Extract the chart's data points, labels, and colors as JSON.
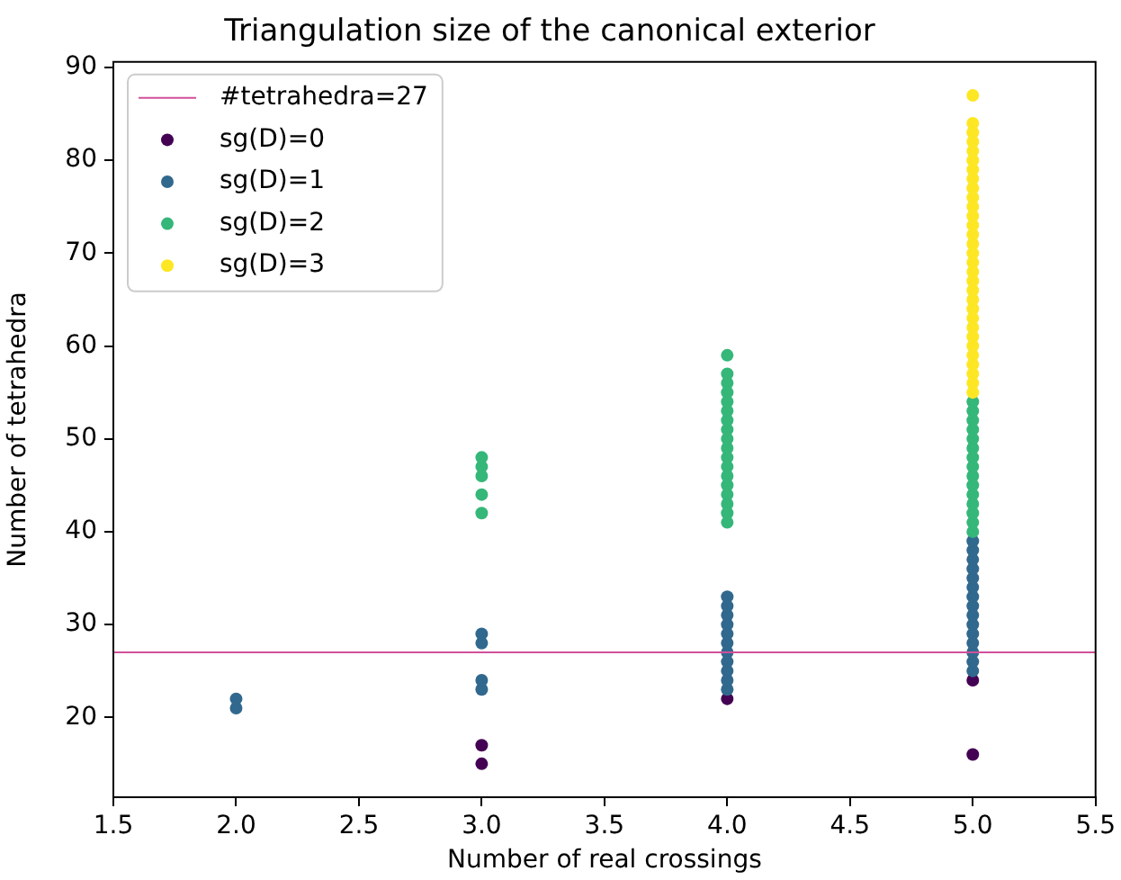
{
  "chart_data": {
    "type": "scatter",
    "title": "Triangulation size of the canonical exterior",
    "xlabel": "Number of real crossings",
    "ylabel": "Number of tetrahedra",
    "xlim": [
      1.5,
      5.5
    ],
    "xticks": [
      1.5,
      {
        "value": 2,
        "label": "2.0"
      },
      2.5,
      {
        "value": 3,
        "label": "3.0"
      },
      3.5,
      {
        "value": 4,
        "label": "4.0"
      },
      4.5,
      {
        "value": 5,
        "label": "5.0"
      },
      5.5
    ],
    "ylim": [
      11.4,
      90.6
    ],
    "yticks": [
      20,
      30,
      40,
      50,
      60,
      70,
      80,
      90
    ],
    "grid": false,
    "legend": "top left",
    "marker": "circle",
    "ref_lines": [
      {
        "axis": "y",
        "value": 27,
        "label": "#tetrahedra=27",
        "color": "#d0509a"
      }
    ],
    "series": [
      {
        "name": "sg(D)=0",
        "color": "#440154",
        "x": [
          3,
          3,
          4,
          5,
          5
        ],
        "values": [
          15,
          17,
          22,
          16,
          24
        ]
      },
      {
        "name": "sg(D)=1",
        "color": "#31688e",
        "x": [
          2,
          2,
          3,
          3,
          3,
          3,
          4,
          4,
          4,
          4,
          4,
          4,
          4,
          4,
          4,
          4,
          4,
          5,
          5,
          5,
          5,
          5,
          5,
          5,
          5,
          5,
          5,
          5,
          5,
          5,
          5,
          5
        ],
        "values": [
          21,
          22,
          23,
          24,
          28,
          29,
          23,
          24,
          25,
          26,
          27,
          28,
          29,
          30,
          31,
          32,
          33,
          25,
          26,
          27,
          28,
          29,
          30,
          31,
          32,
          33,
          34,
          35,
          36,
          37,
          38,
          39
        ]
      },
      {
        "name": "sg(D)=2",
        "color": "#35b779",
        "x": [
          3,
          3,
          3,
          3,
          3,
          4,
          4,
          4,
          4,
          4,
          4,
          4,
          4,
          4,
          4,
          4,
          4,
          4,
          4,
          4,
          4,
          4,
          4,
          5,
          5,
          5,
          5,
          5,
          5,
          5,
          5,
          5,
          5,
          5,
          5,
          5,
          5,
          5
        ],
        "values": [
          42,
          44,
          46,
          47,
          48,
          41,
          42,
          43,
          44,
          45,
          46,
          47,
          48,
          49,
          50,
          51,
          52,
          53,
          54,
          55,
          56,
          57,
          59,
          40,
          41,
          42,
          43,
          44,
          45,
          46,
          47,
          48,
          49,
          50,
          51,
          52,
          53,
          54
        ]
      },
      {
        "name": "sg(D)=3",
        "color": "#fde725",
        "x": [
          5,
          5,
          5,
          5,
          5,
          5,
          5,
          5,
          5,
          5,
          5,
          5,
          5,
          5,
          5,
          5,
          5,
          5,
          5,
          5,
          5,
          5,
          5,
          5,
          5,
          5,
          5,
          5,
          5,
          5,
          5
        ],
        "values": [
          55,
          56,
          57,
          58,
          59,
          60,
          61,
          62,
          63,
          64,
          65,
          66,
          67,
          68,
          69,
          70,
          71,
          72,
          73,
          74,
          75,
          76,
          77,
          78,
          79,
          80,
          81,
          82,
          83,
          84,
          87
        ]
      }
    ]
  }
}
